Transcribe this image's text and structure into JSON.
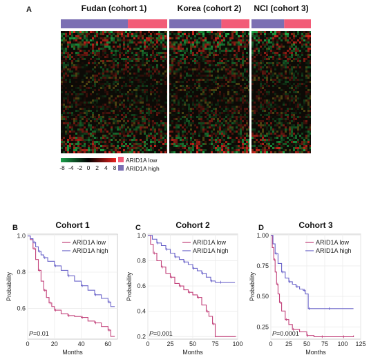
{
  "panel_a": {
    "letter": "A",
    "cohorts": [
      {
        "title": "Fudan (cohort 1)",
        "low_fraction": 0.37
      },
      {
        "title": "Korea (cohort 2)",
        "low_fraction": 0.35
      },
      {
        "title": "NCI (cohort 3)",
        "low_fraction": 0.45
      }
    ],
    "color_scale": {
      "ticks": [
        "-8",
        "-4",
        "-2",
        "0",
        "2",
        "4",
        "8"
      ],
      "low": "#1aa04a",
      "mid": "#000000",
      "high": "#e8201c"
    },
    "legend": [
      {
        "label": "ARID1A low",
        "color": "#f25b77"
      },
      {
        "label": "ARID1A high",
        "color": "#7b6fb3"
      }
    ]
  },
  "km_panels": [
    {
      "letter": "B",
      "title": "Cohort 1",
      "p_value": "=0.01"
    },
    {
      "letter": "C",
      "title": "Cohort 2",
      "p_value": "=0.001"
    },
    {
      "letter": "D",
      "title": "Cohort 3",
      "p_value": "=0.0001"
    }
  ],
  "p_prefix": "P",
  "chart_data": [
    {
      "type": "line",
      "title": "Cohort 1",
      "xlabel": "Months",
      "ylabel": "Probability",
      "xlim": [
        0,
        67
      ],
      "ylim": [
        0.43,
        1.01
      ],
      "xticks": [
        0,
        20,
        40,
        60
      ],
      "yticks": [
        0.6,
        0.8,
        1.0
      ],
      "ytick_labels": [
        "0.6",
        "0.8",
        "1.0"
      ],
      "legend_position": "top-right",
      "series": [
        {
          "name": "ARID1A low",
          "color": "#c2417a",
          "x": [
            0,
            2,
            4,
            6,
            8,
            10,
            12,
            14,
            16,
            18,
            20,
            25,
            30,
            35,
            40,
            45,
            50,
            55,
            60,
            62,
            65
          ],
          "y": [
            1.0,
            0.98,
            0.93,
            0.87,
            0.81,
            0.75,
            0.7,
            0.66,
            0.63,
            0.61,
            0.59,
            0.57,
            0.56,
            0.555,
            0.55,
            0.53,
            0.52,
            0.5,
            0.48,
            0.445,
            0.445
          ]
        },
        {
          "name": "ARID1A high",
          "color": "#6a63c9",
          "x": [
            0,
            2,
            4,
            6,
            8,
            10,
            12,
            15,
            20,
            25,
            30,
            35,
            40,
            45,
            50,
            55,
            60,
            62,
            65
          ],
          "y": [
            1.0,
            0.985,
            0.965,
            0.94,
            0.915,
            0.895,
            0.88,
            0.86,
            0.835,
            0.81,
            0.78,
            0.75,
            0.725,
            0.7,
            0.675,
            0.655,
            0.635,
            0.61,
            0.61
          ]
        }
      ]
    },
    {
      "type": "line",
      "title": "Cohort 2",
      "xlabel": "Months",
      "ylabel": "Probability",
      "xlim": [
        0,
        100
      ],
      "ylim": [
        0.18,
        1.01
      ],
      "xticks": [
        0,
        25,
        50,
        75,
        100
      ],
      "yticks": [
        0.2,
        0.4,
        0.6,
        0.8,
        1.0
      ],
      "ytick_labels": [
        "0.2",
        "0.4",
        "0.6",
        "0.8",
        "1.0"
      ],
      "legend_position": "top-right",
      "series": [
        {
          "name": "ARID1A low",
          "color": "#c2417a",
          "x": [
            0,
            3,
            6,
            10,
            15,
            20,
            25,
            30,
            35,
            40,
            45,
            50,
            55,
            60,
            65,
            68,
            72,
            75,
            98
          ],
          "y": [
            1.0,
            0.93,
            0.86,
            0.8,
            0.75,
            0.7,
            0.67,
            0.62,
            0.6,
            0.57,
            0.55,
            0.53,
            0.51,
            0.45,
            0.4,
            0.36,
            0.3,
            0.2,
            0.2
          ]
        },
        {
          "name": "ARID1A high",
          "color": "#6a63c9",
          "x": [
            0,
            5,
            10,
            15,
            20,
            25,
            30,
            35,
            40,
            45,
            50,
            55,
            60,
            65,
            70,
            75,
            80,
            90,
            97
          ],
          "y": [
            1.0,
            0.97,
            0.94,
            0.92,
            0.89,
            0.86,
            0.83,
            0.81,
            0.79,
            0.77,
            0.74,
            0.72,
            0.7,
            0.67,
            0.64,
            0.63,
            0.63,
            0.63,
            0.63
          ]
        }
      ]
    },
    {
      "type": "line",
      "title": "Cohort 3",
      "xlabel": "Months",
      "ylabel": "Probability",
      "xlim": [
        0,
        125
      ],
      "ylim": [
        0.15,
        1.01
      ],
      "xticks": [
        0,
        25,
        50,
        75,
        100,
        125
      ],
      "yticks": [
        0.25,
        0.5,
        0.75,
        1.0
      ],
      "ytick_labels": [
        "0.25",
        "0.50",
        "0.75",
        "1.00"
      ],
      "legend_position": "top-right",
      "series": [
        {
          "name": "ARID1A low",
          "color": "#c2417a",
          "x": [
            0,
            2,
            4,
            6,
            8,
            10,
            12,
            15,
            20,
            25,
            30,
            40,
            50,
            60,
            70,
            80,
            100,
            115
          ],
          "y": [
            1.0,
            0.9,
            0.8,
            0.7,
            0.6,
            0.52,
            0.45,
            0.38,
            0.31,
            0.27,
            0.23,
            0.21,
            0.18,
            0.17,
            0.17,
            0.17,
            0.17,
            0.18
          ]
        },
        {
          "name": "ARID1A high",
          "color": "#6a63c9",
          "x": [
            0,
            3,
            6,
            10,
            15,
            20,
            25,
            30,
            35,
            40,
            45,
            48,
            52,
            60,
            80,
            100,
            115
          ],
          "y": [
            1.0,
            0.93,
            0.85,
            0.77,
            0.7,
            0.65,
            0.62,
            0.6,
            0.58,
            0.56,
            0.55,
            0.52,
            0.4,
            0.4,
            0.4,
            0.4,
            0.4
          ]
        }
      ]
    }
  ]
}
